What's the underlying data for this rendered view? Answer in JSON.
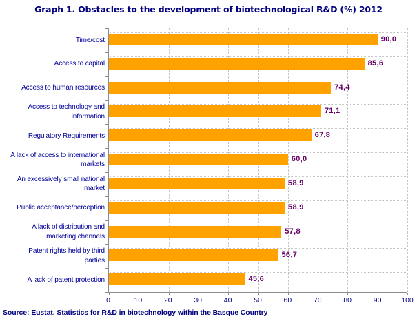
{
  "title": "Graph 1. Obstacles to the development of biotechnological R&D (%) 2012",
  "source": "Source: Eustat. Statistics for R&D in biotechnology within the Basque Country",
  "colors": {
    "bar": "#FFA200",
    "title_text": "#000080",
    "category_text": "#000099",
    "value_text": "#660066",
    "tick_text": "#000080",
    "axis": "#8C8C8C",
    "gridline": "#C6C6C6"
  },
  "chart_data": {
    "type": "bar",
    "orientation": "horizontal",
    "title": "Graph 1. Obstacles to the development of biotechnological R&D (%) 2012",
    "categories": [
      "Time/cost",
      "Access to capital",
      "Access to human resources",
      "Access to technology and\ninformation",
      "Regulatory Requirements",
      "A lack of access to international\nmarkets",
      "An excessively small national\nmarket",
      "Public acceptance/perception",
      "A lack of distribution and\nmarketing channels",
      "Patent rights held by third\nparties",
      "A lack of patent protection"
    ],
    "values": [
      90.0,
      85.6,
      74.4,
      71.1,
      67.8,
      60.0,
      58.9,
      58.9,
      57.8,
      56.7,
      45.6
    ],
    "value_labels": [
      "90,0",
      "85,6",
      "74,4",
      "71,1",
      "67,8",
      "60,0",
      "58,9",
      "58,9",
      "57,8",
      "56,7",
      "45,6"
    ],
    "xlim": [
      0,
      100
    ],
    "xticks": [
      0,
      10,
      20,
      30,
      40,
      50,
      60,
      70,
      80,
      90,
      100
    ],
    "grid": "vertical-dashed",
    "legend": "none",
    "bar_color": "#FFA200",
    "source": "Source: Eustat. Statistics for R&D in biotechnology within the Basque Country"
  }
}
